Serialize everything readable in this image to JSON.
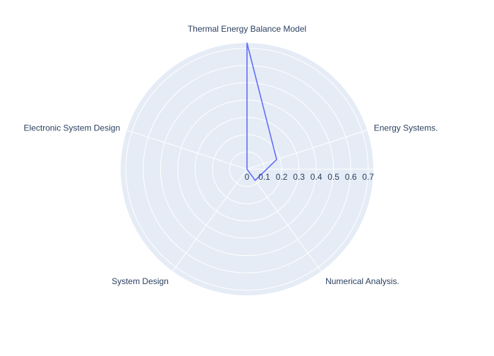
{
  "chart_data": {
    "type": "radar",
    "categories": [
      "Thermal Energy Balance Model",
      "Energy Systems.",
      "Numerical Analysis.",
      "System Design",
      "Electronic System Design"
    ],
    "series": [
      {
        "values": [
          0.73,
          0.18,
          0.08,
          0.0,
          0.0
        ],
        "color": "#636efa"
      }
    ],
    "radial_range": [
      0,
      0.73
    ],
    "radial_ticks": [
      0,
      0.1,
      0.2,
      0.3,
      0.4,
      0.5,
      0.6,
      0.7
    ],
    "radial_tick_labels": [
      "0",
      "0.1",
      "0.2",
      "0.3",
      "0.4",
      "0.5",
      "0.6",
      "0.7"
    ],
    "background_color": "#e5ecf6",
    "grid_color": "#ffffff",
    "text_color": "#2a3f5f",
    "grid": true,
    "legend": false
  }
}
